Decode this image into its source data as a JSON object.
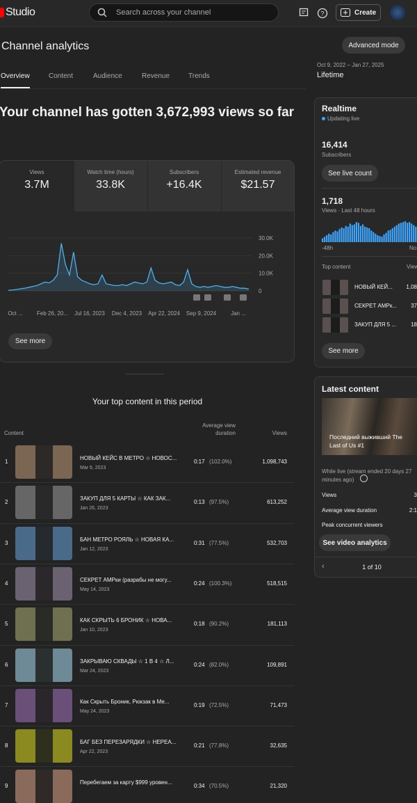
{
  "top_bar": {
    "logo": "Studio",
    "search_placeholder": "Search across your channel",
    "create": "Create"
  },
  "header": {
    "title": "Channel analytics",
    "advanced_mode": "Advanced mode",
    "date_range": "Oct 9, 2022 – Jan 27, 2025",
    "period": "Lifetime"
  },
  "tabs": [
    "Overview",
    "Content",
    "Audience",
    "Revenue",
    "Trends"
  ],
  "headline": "Your channel has gotten 3,672,993 views so far",
  "metrics": [
    {
      "label": "Views",
      "value": "3.7M"
    },
    {
      "label": "Watch time (hours)",
      "value": "33.8K"
    },
    {
      "label": "Subscribers",
      "value": "+16.4K"
    },
    {
      "label": "Estimated revenue",
      "value": "$21.57"
    }
  ],
  "views_chart": {
    "type": "line",
    "values": [
      300,
      500,
      800,
      1200,
      1500,
      2000,
      2500,
      3000,
      4000,
      5000,
      4500,
      6000,
      9000,
      27000,
      15000,
      9000,
      22000,
      8000,
      6000,
      5000,
      4000,
      3500,
      4000,
      9000,
      4000,
      3500,
      3000,
      3000,
      3500,
      3000,
      4000,
      5000,
      4500,
      4000,
      5000,
      13000,
      6000,
      4500,
      4000,
      4500,
      5000,
      3500,
      3000,
      5000,
      12000,
      4000,
      2500,
      2000,
      2500,
      2000,
      2500,
      3000,
      2500,
      2000,
      2000,
      2500,
      2000,
      1500,
      1500,
      1000
    ],
    "ylim": [
      0,
      30000
    ],
    "yticks": [
      0,
      {
        "value": 10000,
        "label": "10.0K"
      },
      {
        "value": 20000,
        "label": "20.0K"
      },
      {
        "value": 30000,
        "label": "30.0K"
      }
    ],
    "xlabels": [
      "Oct ...",
      "Feb 26, 20...",
      "Jul 16, 2023",
      "Dec 4, 2023",
      "Apr 22, 2024",
      "Sep 9, 2024",
      "Jan ..."
    ],
    "color": "#4db1ec"
  },
  "see_more": "See more",
  "top_content": {
    "title": "Your top content in this period",
    "columns": [
      "Content",
      "Average view duration",
      "Views"
    ],
    "rows": [
      {
        "rank": 1,
        "title": "НОВЫЙ КЕЙС В МЕТРО ☆ НОВОС...",
        "date": "Mar 6, 2023",
        "duration": "0:17",
        "percent": "(102.0%)",
        "views": "1,098,743",
        "color": "#7a6652"
      },
      {
        "rank": 2,
        "title": "ЗАКУП ДЛЯ 5 КАРТЫ ☆ КАК ЗАК...",
        "date": "Jan 26, 2023",
        "duration": "0:13",
        "percent": "(97.5%)",
        "views": "613,252",
        "color": "#666666"
      },
      {
        "rank": 3,
        "title": "БАН МЕТРО РОЯЛЬ ☆ НОВАЯ КА...",
        "date": "Jan 12, 2023",
        "duration": "0:31",
        "percent": "(77.5%)",
        "views": "532,703",
        "color": "#4a6a8a"
      },
      {
        "rank": 4,
        "title": "СЕКРЕТ АМРки (разрабы не могу...",
        "date": "May 14, 2023",
        "duration": "0:24",
        "percent": "(100.3%)",
        "views": "518,515",
        "color": "#6a6270"
      },
      {
        "rank": 5,
        "title": "КАК СКРЫТЬ 6 БРОНИК ☆ НОВА...",
        "date": "Jan 10, 2023",
        "duration": "0:18",
        "percent": "(90.2%)",
        "views": "181,113",
        "color": "#6e7050"
      },
      {
        "rank": 6,
        "title": "ЗАКРЫВАЮ СКВАДЫ ☆ 1 В 4 ☆ Л...",
        "date": "Mar 24, 2023",
        "duration": "0:24",
        "percent": "(82.0%)",
        "views": "109,891",
        "color": "#6e8a96"
      },
      {
        "rank": 7,
        "title": "Как Скрыть Броник, Рюкзак в Ме...",
        "date": "May 24, 2023",
        "duration": "0:19",
        "percent": "(72.5%)",
        "views": "71,473",
        "color": "#6a4f78"
      },
      {
        "rank": 8,
        "title": "БАГ БЕЗ ПЕРЕЗАРЯДКИ ☆ НЕРЕА...",
        "date": "Apr 22, 2023",
        "duration": "0:21",
        "percent": "(77.8%)",
        "views": "32,635",
        "color": "#8a8a20"
      },
      {
        "rank": 9,
        "title": "Перебегаем за карту $999 уровен...",
        "date": "",
        "duration": "0:34",
        "percent": "(70.5%)",
        "views": "21,320",
        "color": "#8a6a5a"
      }
    ]
  },
  "realtime": {
    "title": "Realtime",
    "status": "Updating live",
    "subscribers": "16,414",
    "subscribers_label": "Subscribers",
    "live_count_button": "See live count",
    "views": "1,718",
    "views_label": "Views · Last 48 hours",
    "hourly_values": [
      10,
      14,
      18,
      22,
      20,
      26,
      30,
      28,
      34,
      38,
      36,
      42,
      40,
      48,
      44,
      46,
      52,
      50,
      42,
      46,
      40,
      38,
      36,
      30,
      26,
      22,
      18,
      16,
      14,
      20,
      24,
      30,
      32,
      36,
      40,
      44,
      48,
      50,
      52,
      54,
      50,
      52,
      48,
      44,
      40,
      36,
      40,
      38
    ],
    "start_label": "-48h",
    "end_label": "No",
    "top_content_label": "Top content",
    "views_column": "View",
    "items": [
      {
        "title": "НОВЫЙ КЕЙ...",
        "views": "1,08"
      },
      {
        "title": "СЕКРЕТ АМРк...",
        "views": "37"
      },
      {
        "title": "ЗАКУП ДЛЯ 5 ...",
        "views": "18"
      }
    ],
    "see_more": "See more"
  },
  "latest_content": {
    "title": "Latest content",
    "video_title": "Последний выживший The Last of Us #1",
    "status": "While live (stream ended 20 days 27 minutes ago)",
    "stats": [
      {
        "label": "Views",
        "value": "3"
      },
      {
        "label": "Average view duration",
        "value": "2:1"
      },
      {
        "label": "Peak concurrent viewers",
        "value": ""
      }
    ],
    "button": "See video analytics",
    "pager": "1 of 10"
  }
}
